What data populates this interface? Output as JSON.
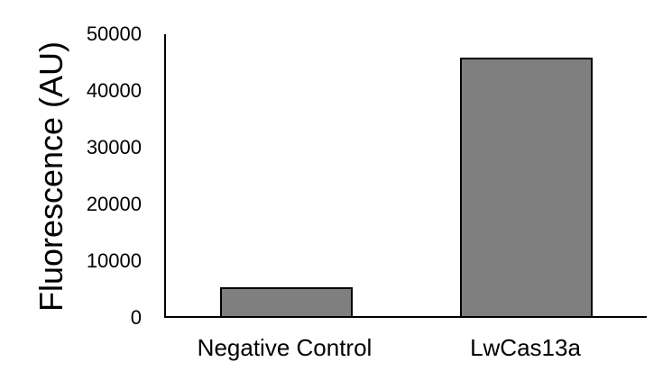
{
  "chart_data": {
    "type": "bar",
    "title": "",
    "xlabel": "",
    "ylabel": "Fluorescence (AU)",
    "categories": [
      "Negative Control",
      "LwCas13a"
    ],
    "values": [
      5100,
      45800
    ],
    "ylim": [
      0,
      50000
    ],
    "yticks": [
      0,
      10000,
      20000,
      30000,
      40000,
      50000
    ],
    "grid": false,
    "legend_position": "none",
    "bar_fill_color": "#7F7F7F",
    "bar_border_color": "#000000",
    "axis_color": "#000000",
    "text_color": "#000000",
    "background_color": "#FFFFFF"
  }
}
